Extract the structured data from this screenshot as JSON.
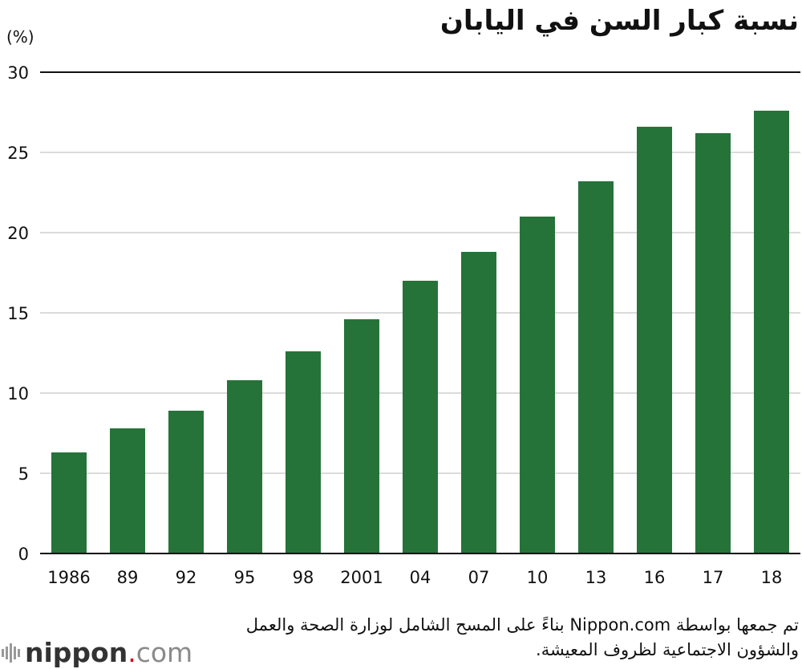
{
  "colors": {
    "bar": "#267339",
    "grid": "#cfcfcf",
    "baseline": "#111111",
    "brand_dot": "#d7001a"
  },
  "chart_data": {
    "type": "bar",
    "title": "نسبة كبار السن في اليابان",
    "ylabel": "(%)",
    "xlabel": "",
    "categories": [
      "1986",
      "89",
      "92",
      "95",
      "98",
      "2001",
      "04",
      "07",
      "10",
      "13",
      "16",
      "17",
      "18"
    ],
    "values": [
      6.3,
      7.8,
      8.9,
      10.8,
      12.6,
      14.6,
      17.0,
      18.8,
      21.0,
      23.2,
      26.6,
      26.2,
      27.6
    ],
    "ylim": [
      0,
      30
    ],
    "yticks": [
      0,
      5,
      10,
      15,
      20,
      25,
      30
    ],
    "grid": true,
    "legend": "none"
  },
  "note": "تم جمعها بواسطة Nippon.com بناءً على المسح الشامل لوزارة الصحة والعمل والشؤون الاجتماعية لظروف المعيشة.",
  "logo": {
    "name": "nippon",
    "dot": ".",
    "suffix": "com"
  }
}
